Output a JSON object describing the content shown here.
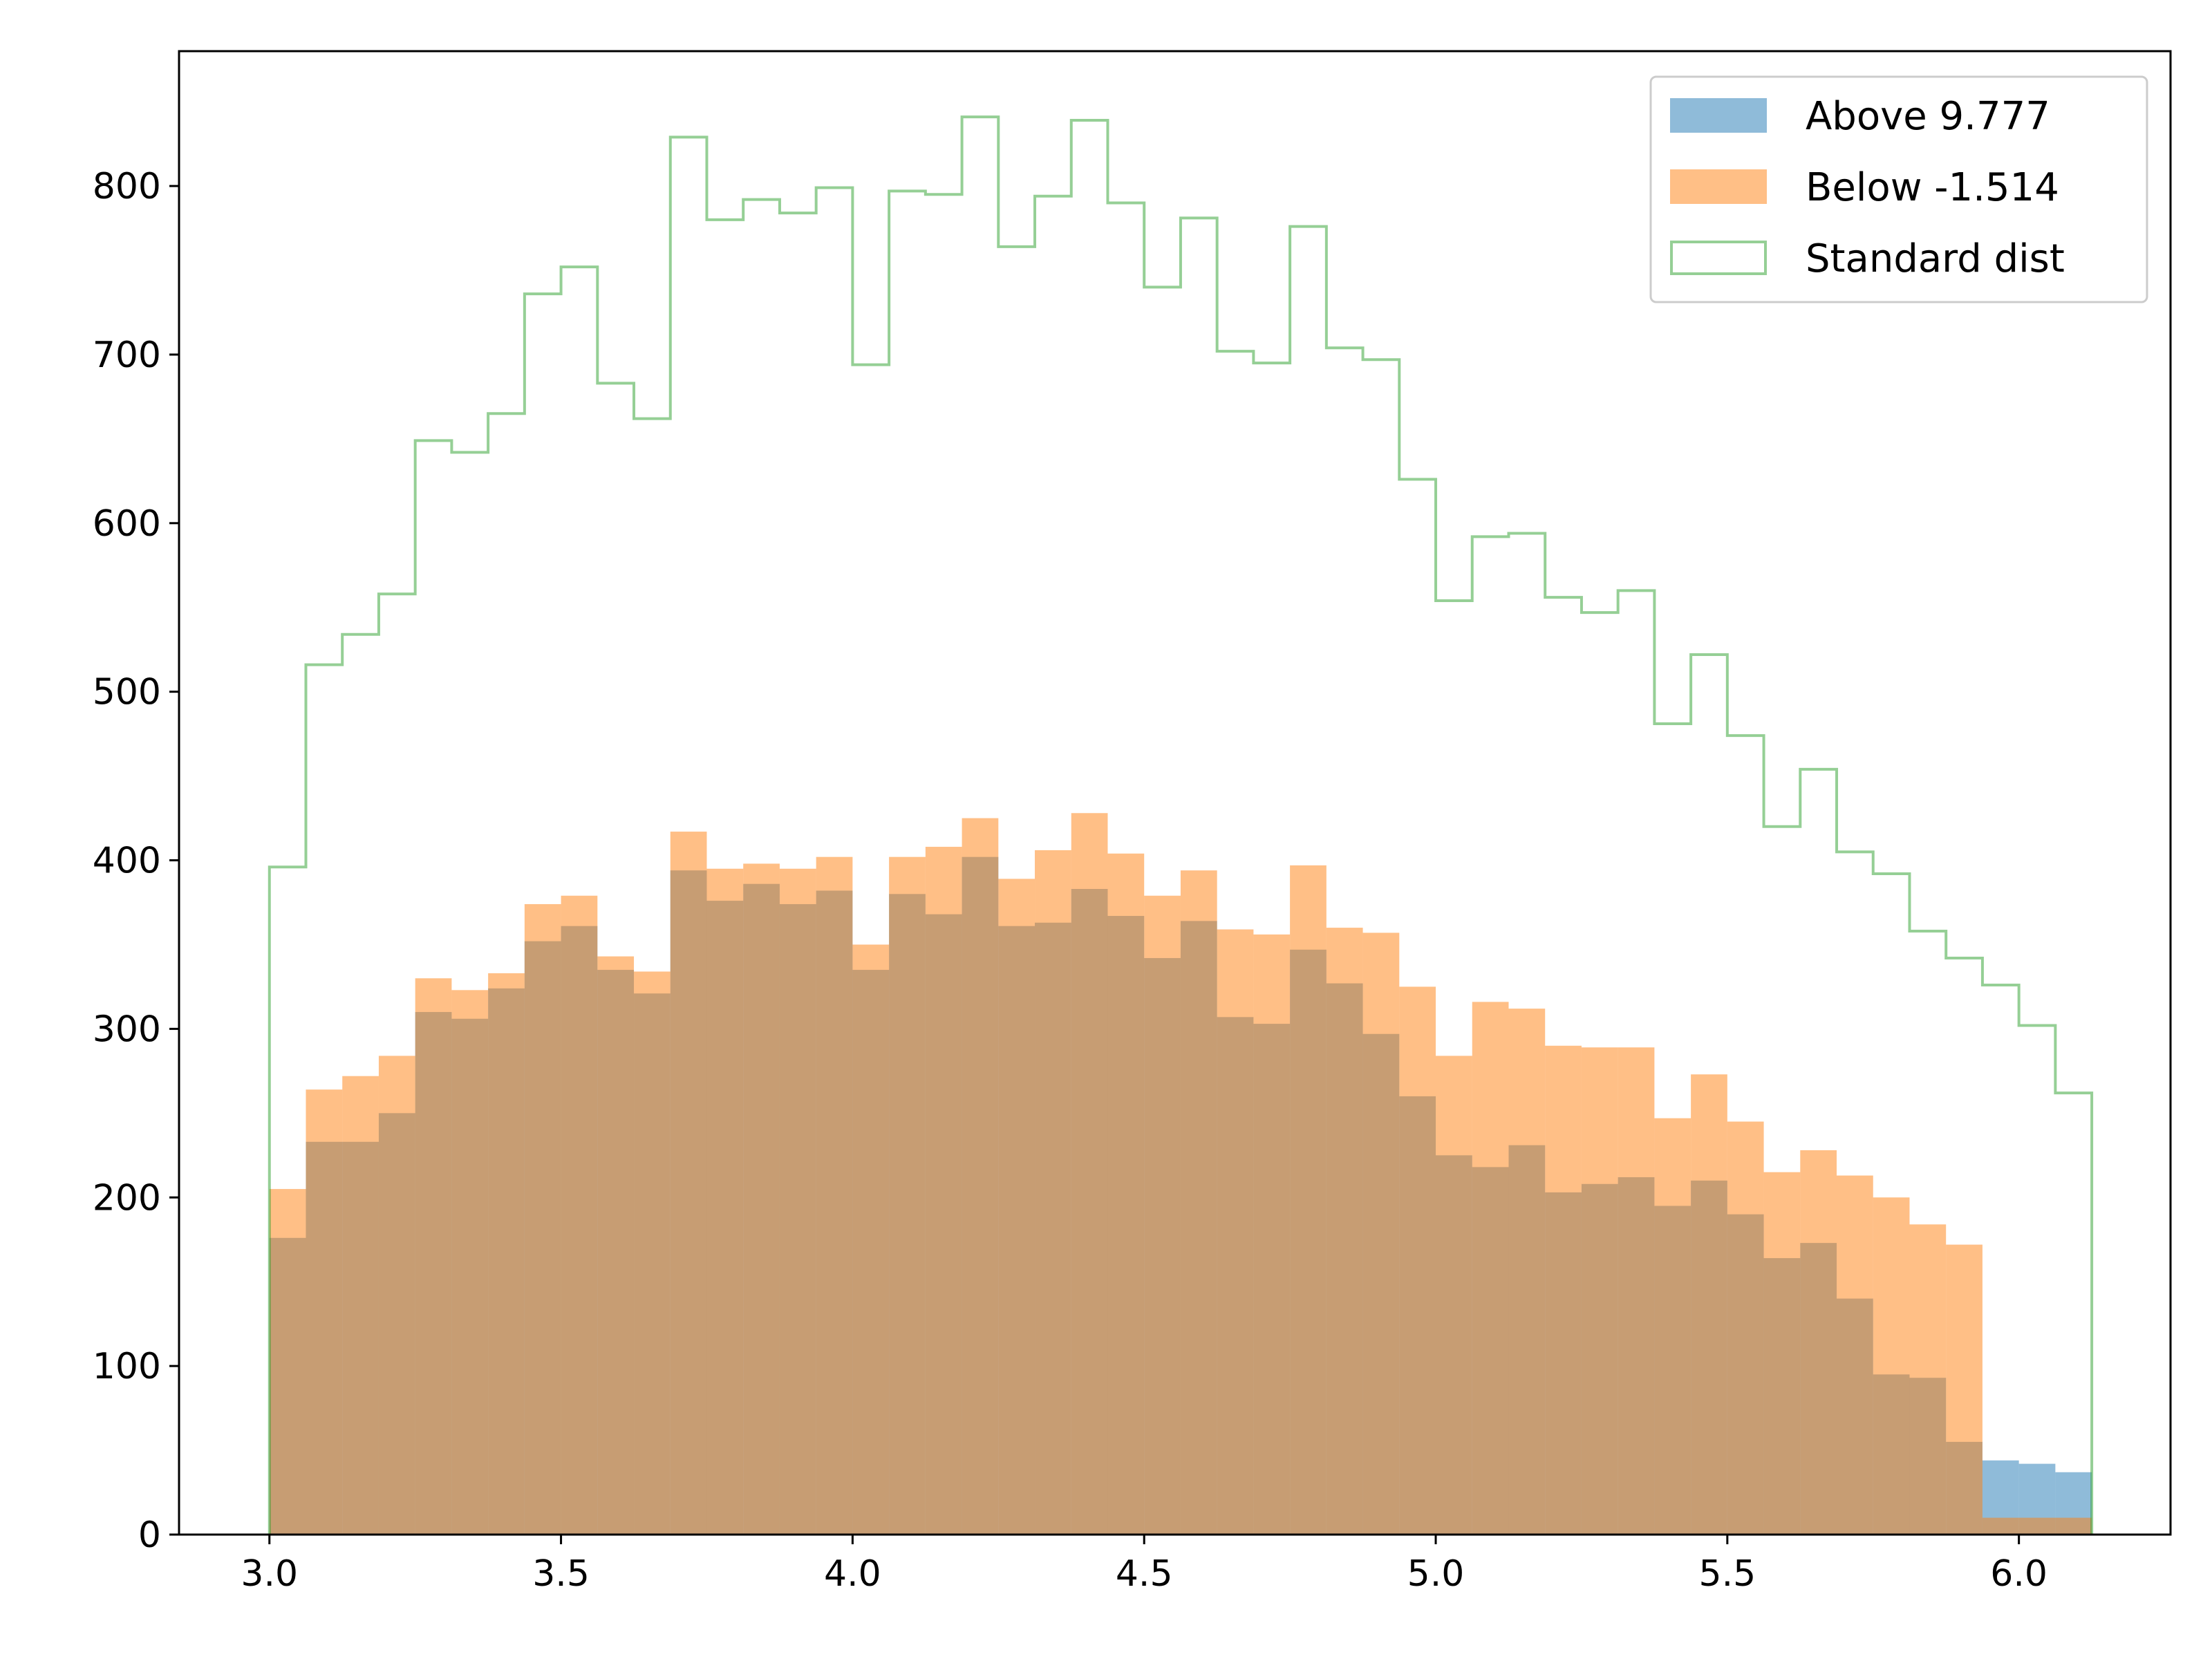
{
  "chart_data": {
    "type": "histogram",
    "bins": {
      "start": 3.0,
      "width": 0.0625,
      "count": 50
    },
    "xlim": [
      2.845,
      6.26
    ],
    "ylim": [
      0,
      880
    ],
    "x_ticks": [
      3.0,
      3.5,
      4.0,
      4.5,
      5.0,
      5.5,
      6.0
    ],
    "x_tick_labels": [
      "3.0",
      "3.5",
      "4.0",
      "4.5",
      "5.0",
      "5.5",
      "6.0"
    ],
    "y_ticks": [
      0,
      100,
      200,
      300,
      400,
      500,
      600,
      700,
      800
    ],
    "y_tick_labels": [
      "0",
      "100",
      "200",
      "300",
      "400",
      "500",
      "600",
      "700",
      "800"
    ],
    "grid": false,
    "legend_position": "top-right",
    "series": [
      {
        "name": "Above 9.777",
        "style": "filled",
        "color": "#1f77b4",
        "alpha": 0.5,
        "values": [
          176,
          233,
          233,
          250,
          310,
          306,
          324,
          352,
          361,
          335,
          321,
          394,
          376,
          386,
          374,
          382,
          335,
          380,
          368,
          402,
          361,
          363,
          383,
          367,
          342,
          364,
          307,
          303,
          347,
          327,
          297,
          260,
          225,
          218,
          231,
          203,
          208,
          212,
          195,
          210,
          190,
          164,
          173,
          140,
          95,
          93,
          55,
          44,
          42,
          37
        ]
      },
      {
        "name": "Below -1.514",
        "style": "filled",
        "color": "#ff7f0e",
        "alpha": 0.5,
        "values": [
          205,
          264,
          272,
          284,
          330,
          323,
          333,
          374,
          379,
          343,
          334,
          417,
          395,
          398,
          395,
          402,
          350,
          402,
          408,
          425,
          389,
          406,
          428,
          404,
          379,
          394,
          359,
          356,
          397,
          360,
          357,
          325,
          284,
          316,
          312,
          290,
          289,
          289,
          247,
          273,
          245,
          215,
          228,
          213,
          200,
          184,
          172,
          10,
          10,
          10
        ]
      },
      {
        "name": "Standard dist",
        "style": "step",
        "color": "#2ca02c",
        "alpha": 0.5,
        "values": [
          396,
          516,
          534,
          558,
          649,
          642,
          665,
          736,
          752,
          683,
          662,
          829,
          780,
          792,
          784,
          799,
          694,
          797,
          795,
          841,
          764,
          794,
          839,
          790,
          740,
          781,
          702,
          695,
          776,
          704,
          697,
          626,
          554,
          592,
          594,
          556,
          547,
          560,
          481,
          522,
          474,
          420,
          454,
          405,
          392,
          358,
          342,
          326,
          302,
          262
        ]
      }
    ]
  }
}
